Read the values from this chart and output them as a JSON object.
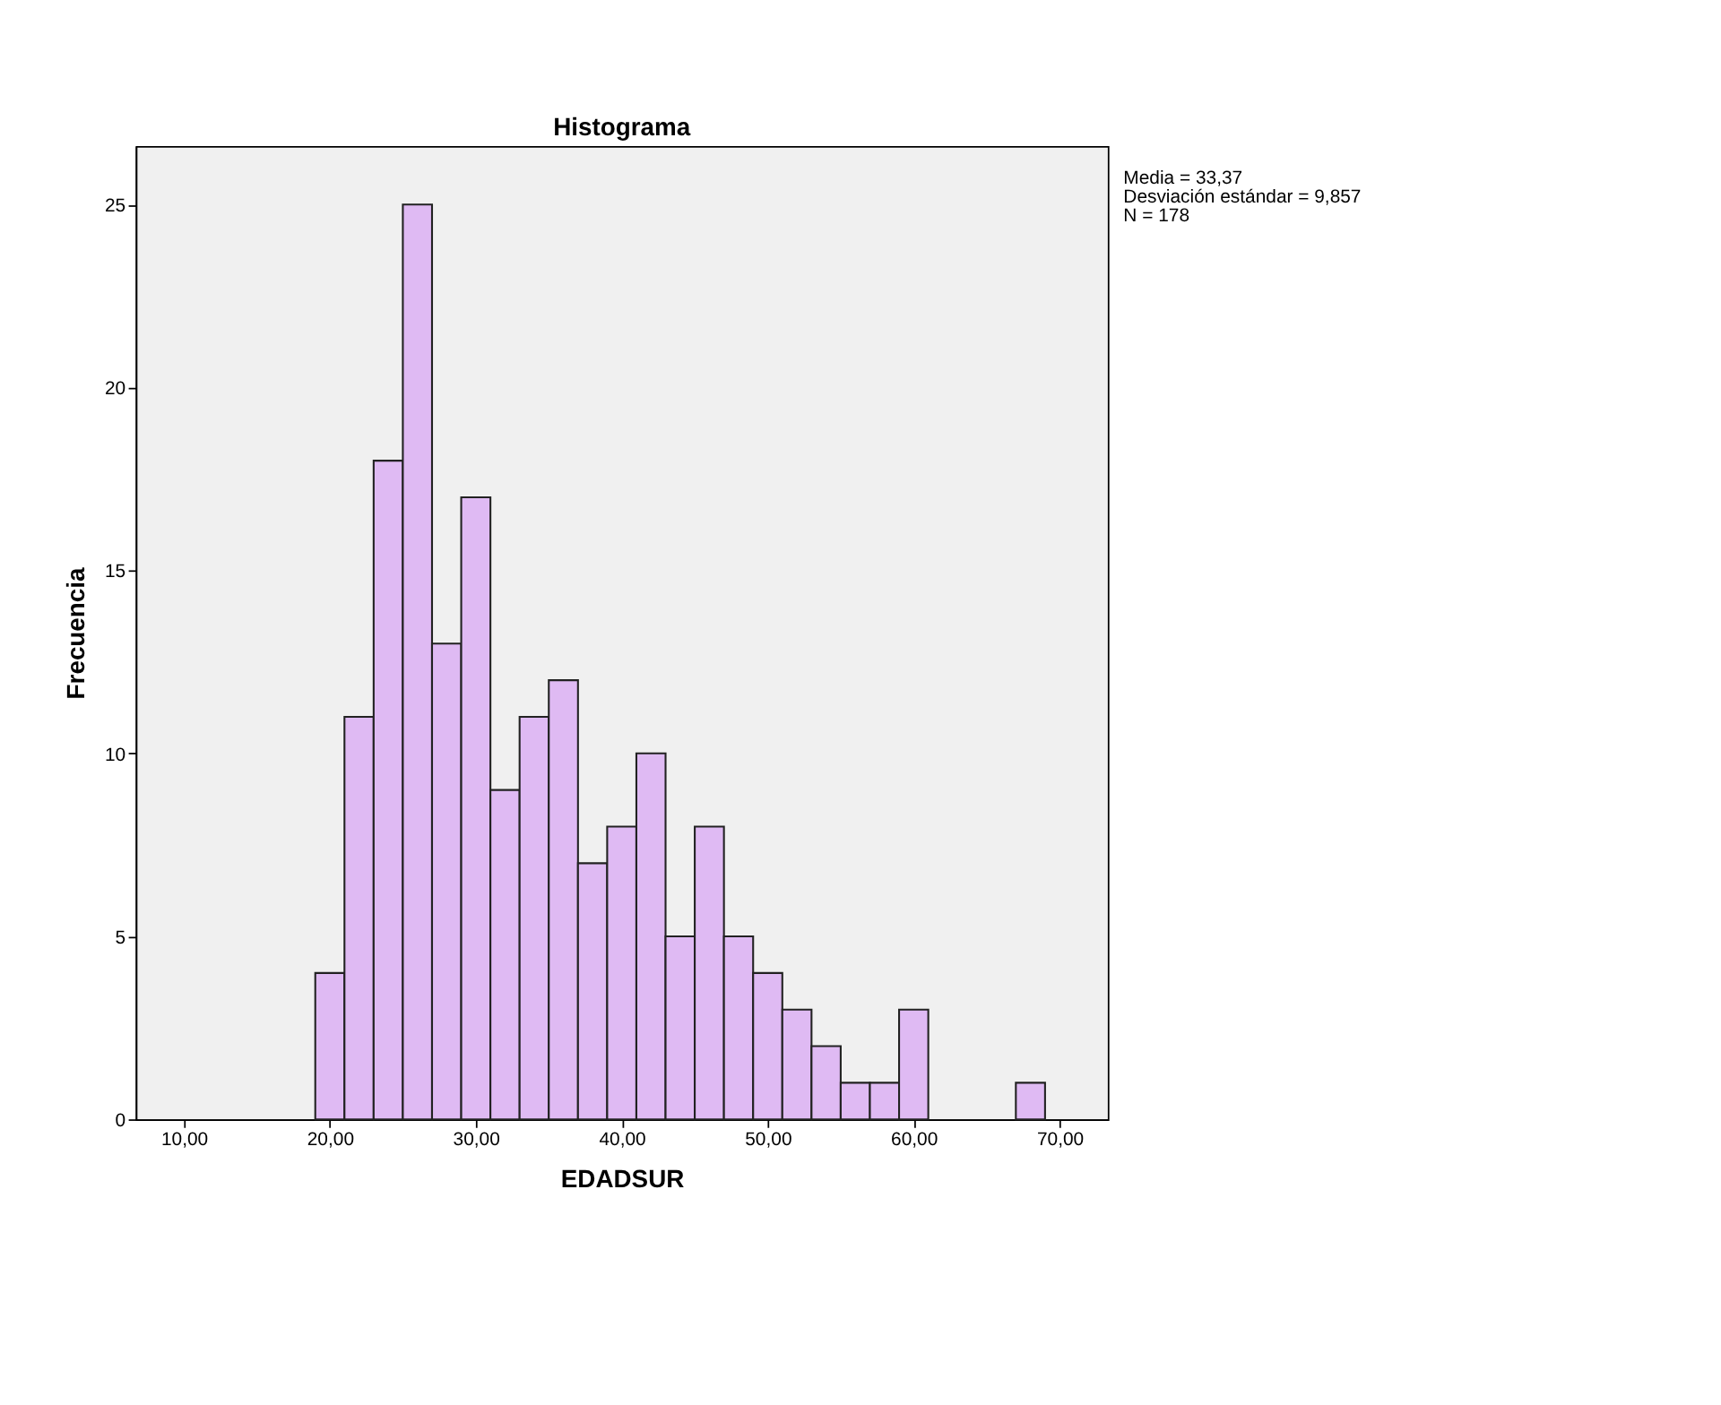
{
  "chart_data": {
    "type": "histogram",
    "title": "Histograma",
    "xlabel": "EDADSUR",
    "ylabel": "Frecuencia",
    "bins": [
      19,
      21,
      23,
      25,
      27,
      29,
      31,
      33,
      35,
      37,
      39,
      41,
      43,
      45,
      47,
      49,
      51,
      53,
      55,
      57,
      59,
      61,
      63,
      65,
      67,
      69
    ],
    "values": [
      4,
      11,
      18,
      25,
      13,
      17,
      9,
      11,
      12,
      7,
      8,
      10,
      5,
      8,
      5,
      4,
      3,
      2,
      1,
      1,
      3,
      0,
      0,
      0,
      1
    ],
    "color": "#dfbaf3",
    "xlim": [
      6.7,
      73.3
    ],
    "ylim": [
      0,
      26.6
    ],
    "xticks": [
      {
        "value": 10,
        "label": "10,00"
      },
      {
        "value": 20,
        "label": "20,00"
      },
      {
        "value": 30,
        "label": "30,00"
      },
      {
        "value": 40,
        "label": "40,00"
      },
      {
        "value": 50,
        "label": "50,00"
      },
      {
        "value": 60,
        "label": "60,00"
      },
      {
        "value": 70,
        "label": "70,00"
      }
    ],
    "yticks": [
      0,
      5,
      10,
      15,
      20,
      25
    ],
    "grid": false,
    "annotations": [
      "Media = 33,37",
      "Desviación estándar = 9,857",
      "N = 178"
    ]
  }
}
